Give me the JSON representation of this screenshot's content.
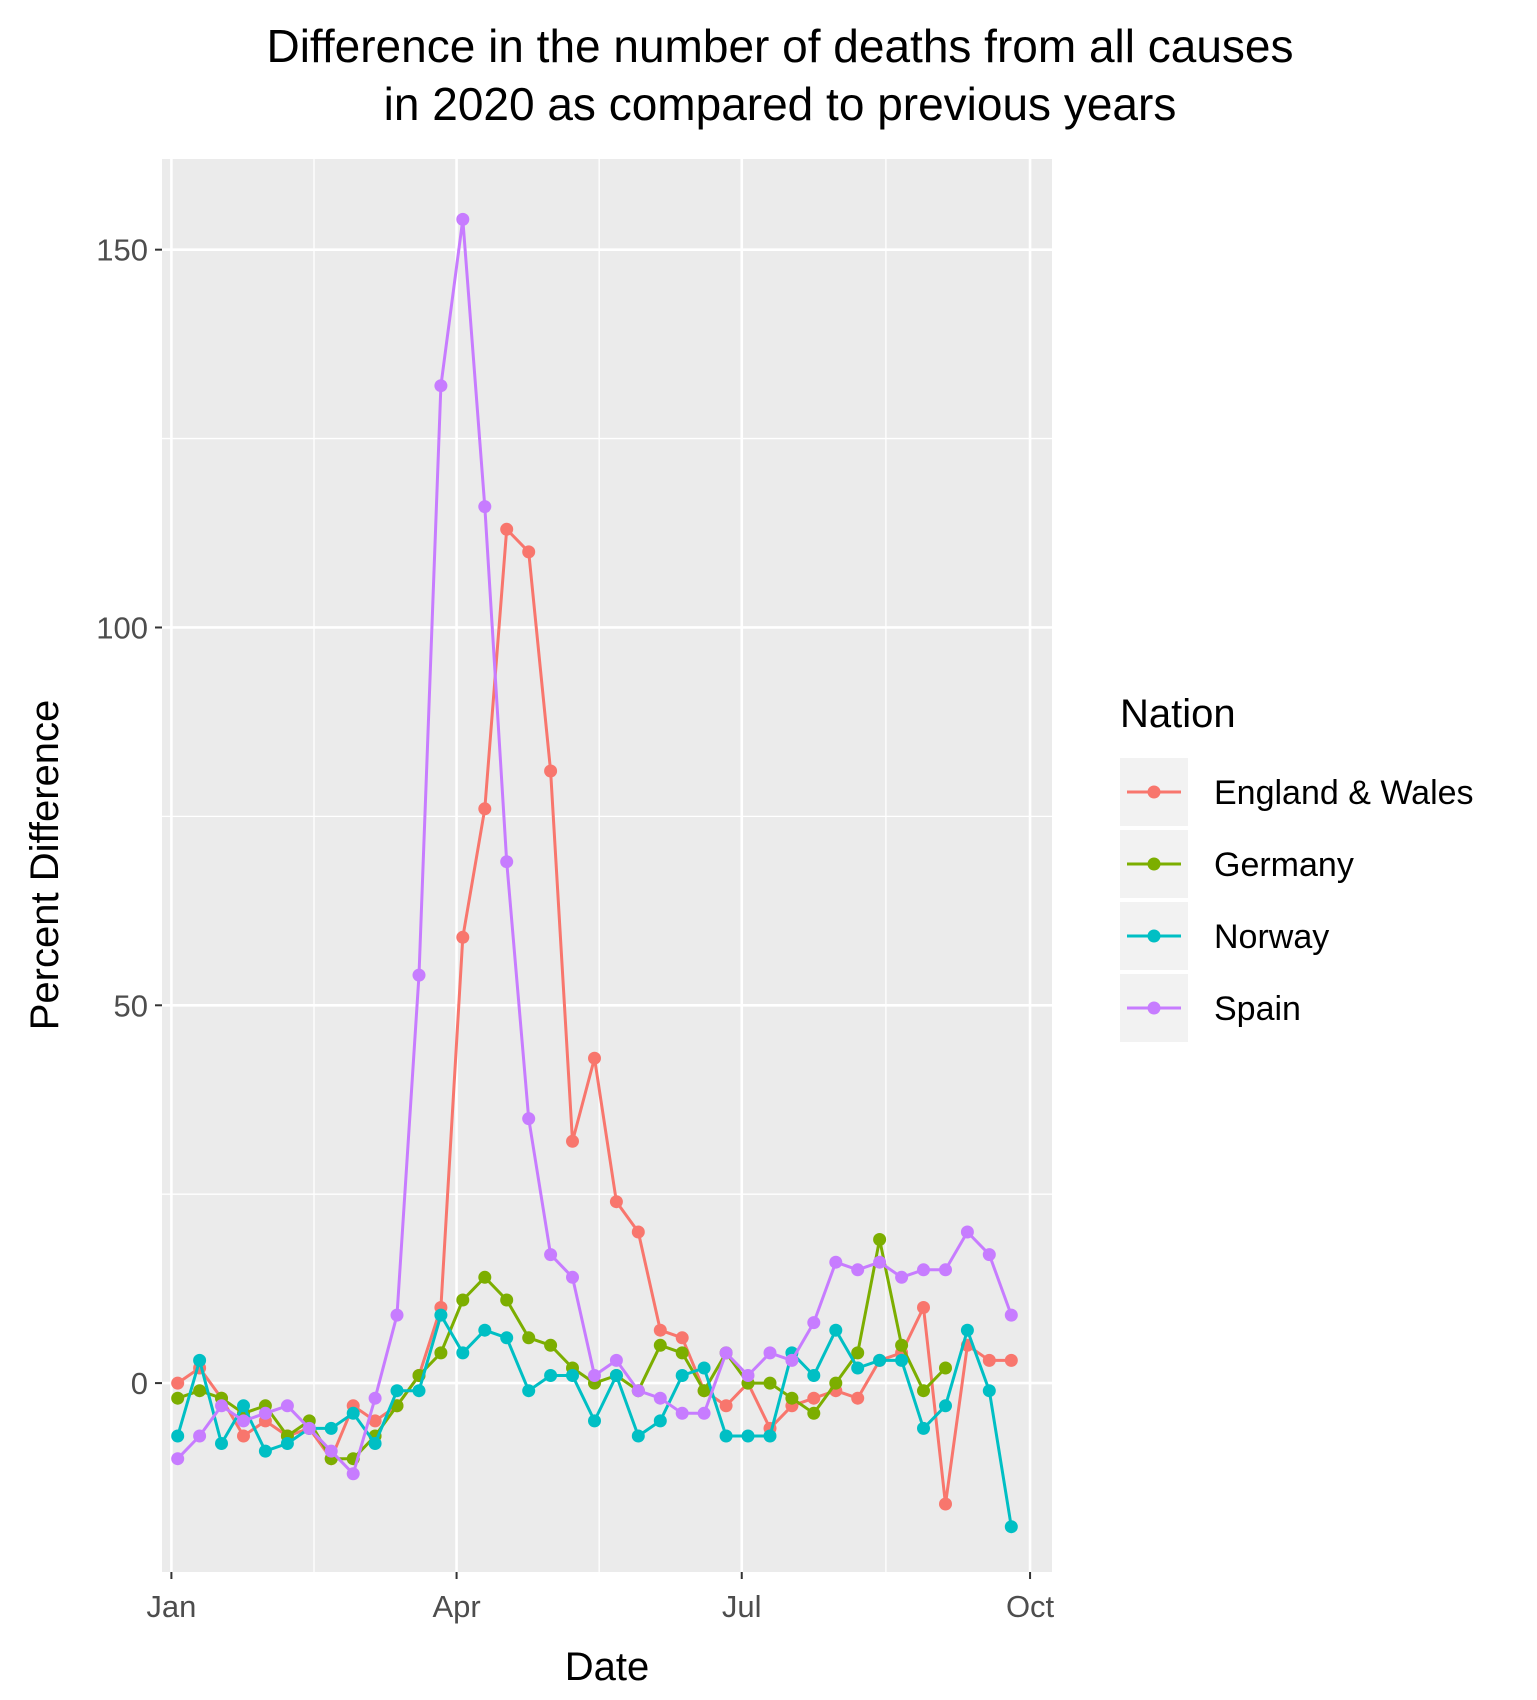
{
  "chart_data": {
    "type": "line",
    "title": [
      "Difference in the number of deaths from all causes",
      "in 2020 as compared to previous years"
    ],
    "xlabel": "Date",
    "ylabel": "Percent Difference",
    "x_ticks": [
      {
        "date": "2020-01-01",
        "label": "Jan"
      },
      {
        "date": "2020-04-01",
        "label": "Apr"
      },
      {
        "date": "2020-07-01",
        "label": "Jul"
      },
      {
        "date": "2020-10-01",
        "label": "Oct"
      }
    ],
    "y_ticks": [
      0,
      50,
      100,
      150
    ],
    "xlim": [
      "2019-12-29",
      "2020-10-08"
    ],
    "ylim": [
      -25,
      162
    ],
    "grid": true,
    "legend": {
      "title": "Nation",
      "position": "right"
    },
    "dates": [
      "2020-01-03",
      "2020-01-10",
      "2020-01-17",
      "2020-01-24",
      "2020-01-31",
      "2020-02-07",
      "2020-02-14",
      "2020-02-21",
      "2020-02-28",
      "2020-03-06",
      "2020-03-13",
      "2020-03-20",
      "2020-03-27",
      "2020-04-03",
      "2020-04-10",
      "2020-04-17",
      "2020-04-24",
      "2020-05-01",
      "2020-05-08",
      "2020-05-15",
      "2020-05-22",
      "2020-05-29",
      "2020-06-05",
      "2020-06-12",
      "2020-06-19",
      "2020-06-26",
      "2020-07-03",
      "2020-07-10",
      "2020-07-17",
      "2020-07-24",
      "2020-07-31",
      "2020-08-07",
      "2020-08-14",
      "2020-08-21",
      "2020-08-28",
      "2020-09-04",
      "2020-09-11",
      "2020-09-18",
      "2020-09-25"
    ],
    "series": [
      {
        "name": "England & Wales",
        "color": "#F8766D",
        "values": [
          0,
          2,
          -2,
          -7,
          -5,
          -7,
          -6,
          -10,
          -3,
          -5,
          -3,
          1,
          10,
          59,
          76,
          113,
          110,
          81,
          32,
          43,
          24,
          20,
          7,
          6,
          -1,
          -3,
          0,
          -6,
          -3,
          -2,
          -1,
          -2,
          3,
          4,
          10,
          -16,
          5,
          3,
          3
        ]
      },
      {
        "name": "Germany",
        "color": "#7CAE00",
        "values": [
          -2,
          -1,
          -2,
          -4,
          -3,
          -7,
          -5,
          -10,
          -10,
          -7,
          -3,
          1,
          4,
          11,
          14,
          11,
          6,
          5,
          2,
          0,
          1,
          -1,
          5,
          4,
          -1,
          4,
          0,
          0,
          -2,
          -4,
          0,
          4,
          19,
          5,
          -1,
          2,
          null,
          null,
          null
        ]
      },
      {
        "name": "Norway",
        "color": "#00BFC4",
        "values": [
          -7,
          3,
          -8,
          -3,
          -9,
          -8,
          -6,
          -6,
          -4,
          -8,
          -1,
          -1,
          9,
          4,
          7,
          6,
          -1,
          1,
          1,
          -5,
          1,
          -7,
          -5,
          1,
          2,
          -7,
          -7,
          -7,
          4,
          1,
          7,
          2,
          3,
          3,
          -6,
          -3,
          7,
          -1,
          -19
        ]
      },
      {
        "name": "Spain",
        "color": "#C77CFF",
        "values": [
          -10,
          -7,
          -3,
          -5,
          -4,
          -3,
          -6,
          -9,
          -12,
          -2,
          9,
          54,
          132,
          154,
          116,
          69,
          35,
          17,
          14,
          1,
          3,
          -1,
          -2,
          -4,
          -4,
          4,
          1,
          4,
          3,
          8,
          16,
          15,
          16,
          14,
          15,
          15,
          20,
          17,
          9
        ]
      }
    ]
  }
}
